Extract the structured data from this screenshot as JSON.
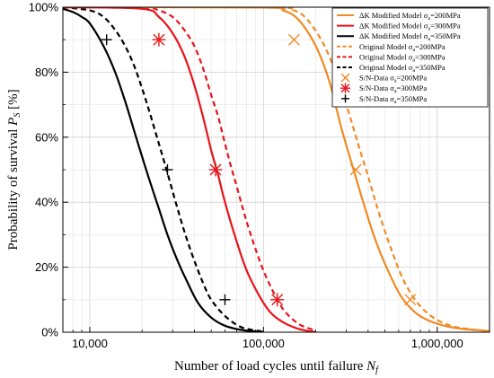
{
  "chart_data": {
    "type": "line",
    "xscale": "log",
    "xlabel": "Number of load cycles until failure",
    "xlabel_symbol": "N",
    "xlabel_sub": "f",
    "ylabel": "Probability of survival",
    "ylabel_symbol": "P",
    "ylabel_sub": "S",
    "ylabel_unit": "[%]",
    "xlim": [
      7000,
      2000000
    ],
    "ylim": [
      0,
      100
    ],
    "x_ticks": [
      10000,
      100000,
      1000000
    ],
    "x_tick_labels": [
      "10,000",
      "100,000",
      "1,000,000"
    ],
    "y_ticks": [
      0,
      20,
      40,
      60,
      80,
      100
    ],
    "y_tick_labels": [
      "0%",
      "20%",
      "40%",
      "60%",
      "80%",
      "100%"
    ],
    "grid": true,
    "legend_position": "top-right",
    "series": [
      {
        "name": "ΔK Modified Model σa=200MPa",
        "label_prefix": "ΔK Modified Model σ",
        "label_sub": "a",
        "label_suffix": "=200MPa",
        "color": "#f08a24",
        "style": "solid",
        "x": [
          7000,
          100000,
          130000,
          160000,
          200000,
          240000,
          280000,
          330000,
          380000,
          440000,
          520000,
          620000,
          750000,
          900000,
          1100000,
          1400000,
          2000000
        ],
        "y": [
          100,
          99.9,
          99,
          96,
          88,
          77,
          63,
          50,
          39,
          28.5,
          19,
          11,
          6,
          3.5,
          2,
          1,
          0.4
        ]
      },
      {
        "name": "ΔK Modified Model σa=300MPa",
        "label_prefix": "ΔK Modified Model σ",
        "label_sub": "a",
        "label_suffix": "=300MPa",
        "color": "#e8141b",
        "style": "solid",
        "x": [
          7000,
          20000,
          25000,
          30000,
          35000,
          40000,
          45000,
          50000,
          55000,
          60000,
          70000,
          80000,
          95000,
          110000,
          130000,
          160000,
          200000
        ],
        "y": [
          100,
          99.5,
          97,
          92,
          85,
          76,
          66,
          56,
          48,
          40,
          28,
          19,
          11,
          6,
          3,
          1,
          0
        ]
      },
      {
        "name": "ΔK Modified Model σa=350MPa",
        "label_prefix": "ΔK Modified Model σ",
        "label_sub": "a",
        "label_suffix": "=350MPa",
        "color": "#000000",
        "style": "solid",
        "x": [
          7000,
          8000,
          9000,
          10000,
          12000,
          14000,
          16000,
          18000,
          20000,
          22000,
          25000,
          28000,
          32000,
          36000,
          42000,
          50000,
          60000,
          75000,
          100000
        ],
        "y": [
          99.5,
          98.5,
          97,
          95,
          88,
          80,
          71,
          62,
          54,
          47,
          38,
          30,
          22,
          16,
          9,
          4.5,
          2,
          0.7,
          0
        ]
      },
      {
        "name": "Original Model σa=200MPa",
        "label_prefix": "Original Model σ",
        "label_sub": "a",
        "label_suffix": "=200MPa",
        "color": "#f08a24",
        "style": "dashed",
        "x": [
          7000,
          110000,
          150000,
          180000,
          220000,
          260000,
          300000,
          350000,
          400000,
          460000,
          540000,
          640000,
          770000,
          950000,
          1200000,
          1500000,
          2000000
        ],
        "y": [
          100,
          99.9,
          99,
          96,
          89,
          80,
          70,
          58,
          48,
          37,
          26,
          16,
          9,
          4.5,
          2,
          1,
          0.3
        ]
      },
      {
        "name": "Original Model σa=300MPa",
        "label_prefix": "Original Model σ",
        "label_sub": "a",
        "label_suffix": "=300MPa",
        "color": "#e8141b",
        "style": "dashed",
        "x": [
          7000,
          20000,
          25000,
          30000,
          35000,
          40000,
          45000,
          50000,
          55000,
          60000,
          65000,
          70000,
          80000,
          95000,
          110000,
          130000,
          160000,
          200000
        ],
        "y": [
          100,
          99.9,
          99,
          97,
          93,
          88,
          81,
          73,
          66,
          58,
          51,
          45,
          34,
          22,
          14,
          7,
          2.5,
          0.5
        ]
      },
      {
        "name": "Original Model σa=350MPa",
        "label_prefix": "Original Model σ",
        "label_sub": "a",
        "label_suffix": "=350MPa",
        "color": "#000000",
        "style": "dashed",
        "x": [
          7000,
          10000,
          12000,
          14000,
          16000,
          18000,
          20000,
          22000,
          25000,
          28000,
          32000,
          36000,
          40000,
          45000,
          50000,
          60000,
          75000,
          100000
        ],
        "y": [
          100,
          99,
          97,
          93,
          88,
          82,
          75,
          68,
          58,
          49,
          38,
          29,
          22,
          15,
          10,
          5,
          1.5,
          0.2
        ]
      }
    ],
    "scatter": [
      {
        "name": "S/N-Data σa=200MPa",
        "label_prefix": "S/N-Data σ",
        "label_sub": "a",
        "label_suffix": "=200MPa",
        "color": "#f08a24",
        "marker": "x",
        "x": [
          150000,
          340000,
          700000
        ],
        "y": [
          90,
          50,
          10
        ]
      },
      {
        "name": "S/N-Data σa=300MPa",
        "label_prefix": "S/N-Data σ",
        "label_sub": "a",
        "label_suffix": "=300MPa",
        "color": "#e8141b",
        "marker": "asterisk",
        "x": [
          25000,
          53000,
          120000
        ],
        "y": [
          90,
          50,
          10
        ]
      },
      {
        "name": "S/N-Data σa=350MPa",
        "label_prefix": "S/N-Data σ",
        "label_sub": "a",
        "label_suffix": "=350MPa",
        "color": "#000000",
        "marker": "plus",
        "x": [
          12500,
          28000,
          60000
        ],
        "y": [
          90,
          50,
          10
        ]
      }
    ]
  }
}
